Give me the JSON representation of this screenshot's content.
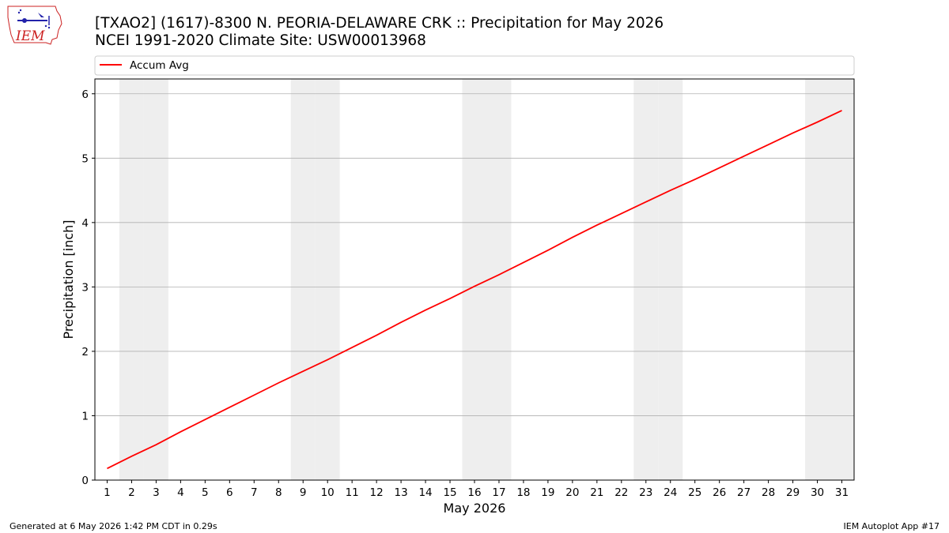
{
  "header": {
    "title_line1": "[TXAO2] (1617)-8300 N. PEORIA-DELAWARE CRK :: Precipitation for May 2026",
    "title_line2": "NCEI 1991-2020 Climate Site: USW00013968"
  },
  "logo": {
    "text": "IEM",
    "icon": "iem-iowa-weather-logo-icon"
  },
  "footer": {
    "generated": "Generated at 6 May 2026 1:42 PM CDT in 0.29s",
    "app": "IEM Autoplot App #17"
  },
  "colors": {
    "line": "#ff0000",
    "weekend_shade": "#eeeeee",
    "grid": "#b0b0b0",
    "logo": "#cc2222"
  },
  "chart_data": {
    "type": "line",
    "xlabel": "May 2026",
    "ylabel": "Precipitation [inch]",
    "xlim": [
      0.5,
      31.5
    ],
    "ylim": [
      0,
      6.23
    ],
    "x": [
      1,
      2,
      3,
      4,
      5,
      6,
      7,
      8,
      9,
      10,
      11,
      12,
      13,
      14,
      15,
      16,
      17,
      18,
      19,
      20,
      21,
      22,
      23,
      24,
      25,
      26,
      27,
      28,
      29,
      30,
      31
    ],
    "x_tick_labels": [
      "1",
      "2",
      "3",
      "4",
      "5",
      "6",
      "7",
      "8",
      "9",
      "10",
      "11",
      "12",
      "13",
      "14",
      "15",
      "16",
      "17",
      "18",
      "19",
      "20",
      "21",
      "22",
      "23",
      "24",
      "25",
      "26",
      "27",
      "28",
      "29",
      "30",
      "31"
    ],
    "y_ticks": [
      0,
      1,
      2,
      3,
      4,
      5,
      6
    ],
    "y_tick_labels": [
      "0",
      "1",
      "2",
      "3",
      "4",
      "5",
      "6"
    ],
    "series": [
      {
        "name": "Accum Avg",
        "color": "#ff0000",
        "values": [
          0.18,
          0.37,
          0.55,
          0.75,
          0.94,
          1.13,
          1.32,
          1.51,
          1.69,
          1.87,
          2.06,
          2.25,
          2.45,
          2.64,
          2.82,
          3.01,
          3.19,
          3.38,
          3.57,
          3.77,
          3.96,
          4.14,
          4.32,
          4.5,
          4.67,
          4.85,
          5.03,
          5.21,
          5.39,
          5.56,
          5.74
        ]
      }
    ],
    "weekend_days": [
      2,
      3,
      9,
      10,
      16,
      17,
      23,
      24,
      30,
      31
    ],
    "grid": "horizontal",
    "legend_position": "top"
  }
}
